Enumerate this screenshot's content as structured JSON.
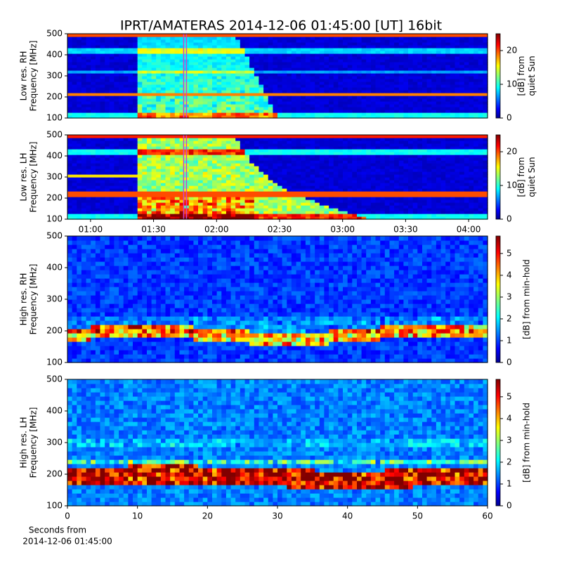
{
  "title": "IPRT/AMATERAS 2014-12-06 01:45:00 [UT]   16bit",
  "xlabel": [
    "Seconds from",
    "2014-12-06 01:45:00"
  ],
  "chart_data": [
    {
      "type": "heatmap",
      "ylabel": [
        "Low res. RH",
        "Frequency [MHz]"
      ],
      "xlim": [
        "00:49",
        "04:09"
      ],
      "ylim": [
        100,
        500
      ],
      "yticks": [
        100,
        200,
        300,
        400,
        500
      ],
      "marker_x": "01:45",
      "marker_color": "#cc44cc",
      "colormap": "jet",
      "clim": [
        0,
        25
      ],
      "cticks": [
        0,
        10,
        20
      ],
      "clabel": [
        "[dB] from",
        "quiet Sun"
      ]
    },
    {
      "type": "heatmap",
      "ylabel": [
        "Low res. LH",
        "Frequency [MHz]"
      ],
      "xlim": [
        "00:49",
        "04:09"
      ],
      "xticks": [
        "01:00",
        "01:30",
        "02:00",
        "02:30",
        "03:00",
        "03:30",
        "04:00"
      ],
      "ylim": [
        100,
        500
      ],
      "yticks": [
        100,
        200,
        300,
        400,
        500
      ],
      "marker_x": "01:45",
      "marker_color": "#cc44cc",
      "colormap": "jet",
      "clim": [
        0,
        25
      ],
      "cticks": [
        0,
        10,
        20
      ],
      "clabel": [
        "[dB] from",
        "quiet Sun"
      ]
    },
    {
      "type": "heatmap",
      "ylabel": [
        "High res. RH",
        "Frequency [MHz]"
      ],
      "xlim": [
        0,
        60
      ],
      "ylim": [
        100,
        500
      ],
      "yticks": [
        100,
        200,
        300,
        400,
        500
      ],
      "colormap": "jet",
      "clim": [
        0,
        5.8
      ],
      "cticks": [
        0,
        1,
        2,
        3,
        4,
        5
      ],
      "clabel": [
        "[dB] from min-hold"
      ]
    },
    {
      "type": "heatmap",
      "ylabel": [
        "High res. LH",
        "Frequency [MHz]"
      ],
      "xlim": [
        0,
        60
      ],
      "xticks": [
        0,
        10,
        20,
        30,
        40,
        50,
        60
      ],
      "ylim": [
        100,
        500
      ],
      "yticks": [
        100,
        200,
        300,
        400,
        500
      ],
      "colormap": "jet",
      "clim": [
        0,
        5.8
      ],
      "cticks": [
        0,
        1,
        2,
        3,
        4,
        5
      ],
      "clabel": [
        "[dB] from min-hold"
      ]
    }
  ]
}
